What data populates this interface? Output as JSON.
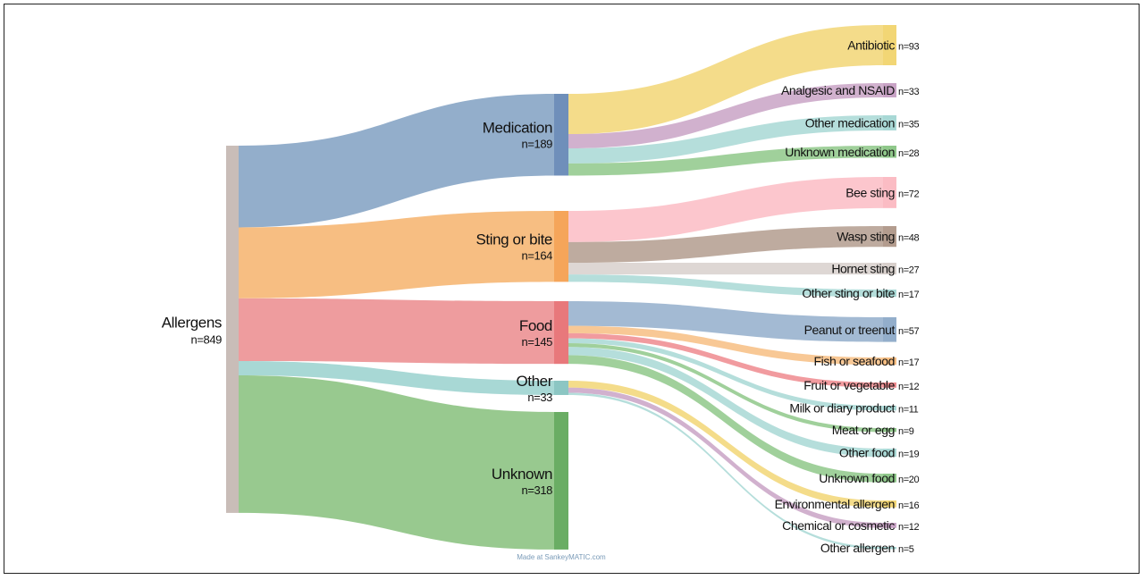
{
  "chart_data": {
    "type": "sankey",
    "credit": "Made at SankeyMATIC.com",
    "root": {
      "name": "Allergens",
      "value_label": "n=849",
      "value": 849,
      "color": "#c9bdb8"
    },
    "categories": [
      {
        "name": "Medication",
        "value_label": "n=189",
        "value": 189,
        "node_color": "#6f8fba",
        "flow_color": "#93aecb",
        "children": [
          {
            "name": "Antibiotic",
            "value_label": "n=93",
            "value": 93,
            "color": "#f2d675"
          },
          {
            "name": "Analgesic and NSAID",
            "value_label": "n=33",
            "value": 33,
            "color": "#c9a3c6"
          },
          {
            "name": "Other medication",
            "value_label": "n=35",
            "value": 35,
            "color": "#a8d8d5"
          },
          {
            "name": "Unknown medication",
            "value_label": "n=28",
            "value": 28,
            "color": "#8fc88a"
          }
        ]
      },
      {
        "name": "Sting or bite",
        "value_label": "n=164",
        "value": 164,
        "node_color": "#f5a55a",
        "flow_color": "#f7be82",
        "children": [
          {
            "name": "Bee sting",
            "value_label": "n=72",
            "value": 72,
            "color": "#fbbcc4"
          },
          {
            "name": "Wasp sting",
            "value_label": "n=48",
            "value": 48,
            "color": "#b39c8e"
          },
          {
            "name": "Hornet sting",
            "value_label": "n=27",
            "value": 27,
            "color": "#d8d0cc"
          },
          {
            "name": "Other sting or bite",
            "value_label": "n=17",
            "value": 17,
            "color": "#a8d8d5"
          }
        ]
      },
      {
        "name": "Food",
        "value_label": "n=145",
        "value": 145,
        "node_color": "#e8787b",
        "flow_color": "#ee9c9e",
        "children": [
          {
            "name": "Peanut or treenut",
            "value_label": "n=57",
            "value": 57,
            "color": "#93aecb"
          },
          {
            "name": "Fish or seafood",
            "value_label": "n=17",
            "value": 17,
            "color": "#f7be82"
          },
          {
            "name": "Fruit or vegetable",
            "value_label": "n=12",
            "value": 12,
            "color": "#ee8a8e"
          },
          {
            "name": "Milk or diary product",
            "value_label": "n=11",
            "value": 11,
            "color": "#a8d8d5"
          },
          {
            "name": "Meat or egg",
            "value_label": "n=9",
            "value": 9,
            "color": "#8fc88a"
          },
          {
            "name": "Other food",
            "value_label": "n=19",
            "value": 19,
            "color": "#a8d8d5"
          },
          {
            "name": "Unknown food",
            "value_label": "n=20",
            "value": 20,
            "color": "#8fc88a"
          }
        ]
      },
      {
        "name": "Other",
        "value_label": "n=33",
        "value": 33,
        "node_color": "#8cc6c3",
        "flow_color": "#a8d8d5",
        "children": [
          {
            "name": "Environmental allergen",
            "value_label": "n=16",
            "value": 16,
            "color": "#f2d675"
          },
          {
            "name": "Chemical or cosmetic",
            "value_label": "n=12",
            "value": 12,
            "color": "#c9a3c6"
          },
          {
            "name": "Other allergen",
            "value_label": "n=5",
            "value": 5,
            "color": "#a8d8d5"
          }
        ]
      },
      {
        "name": "Unknown",
        "value_label": "n=318",
        "value": 318,
        "node_color": "#6aad64",
        "flow_color": "#98c98f",
        "children": []
      }
    ]
  }
}
